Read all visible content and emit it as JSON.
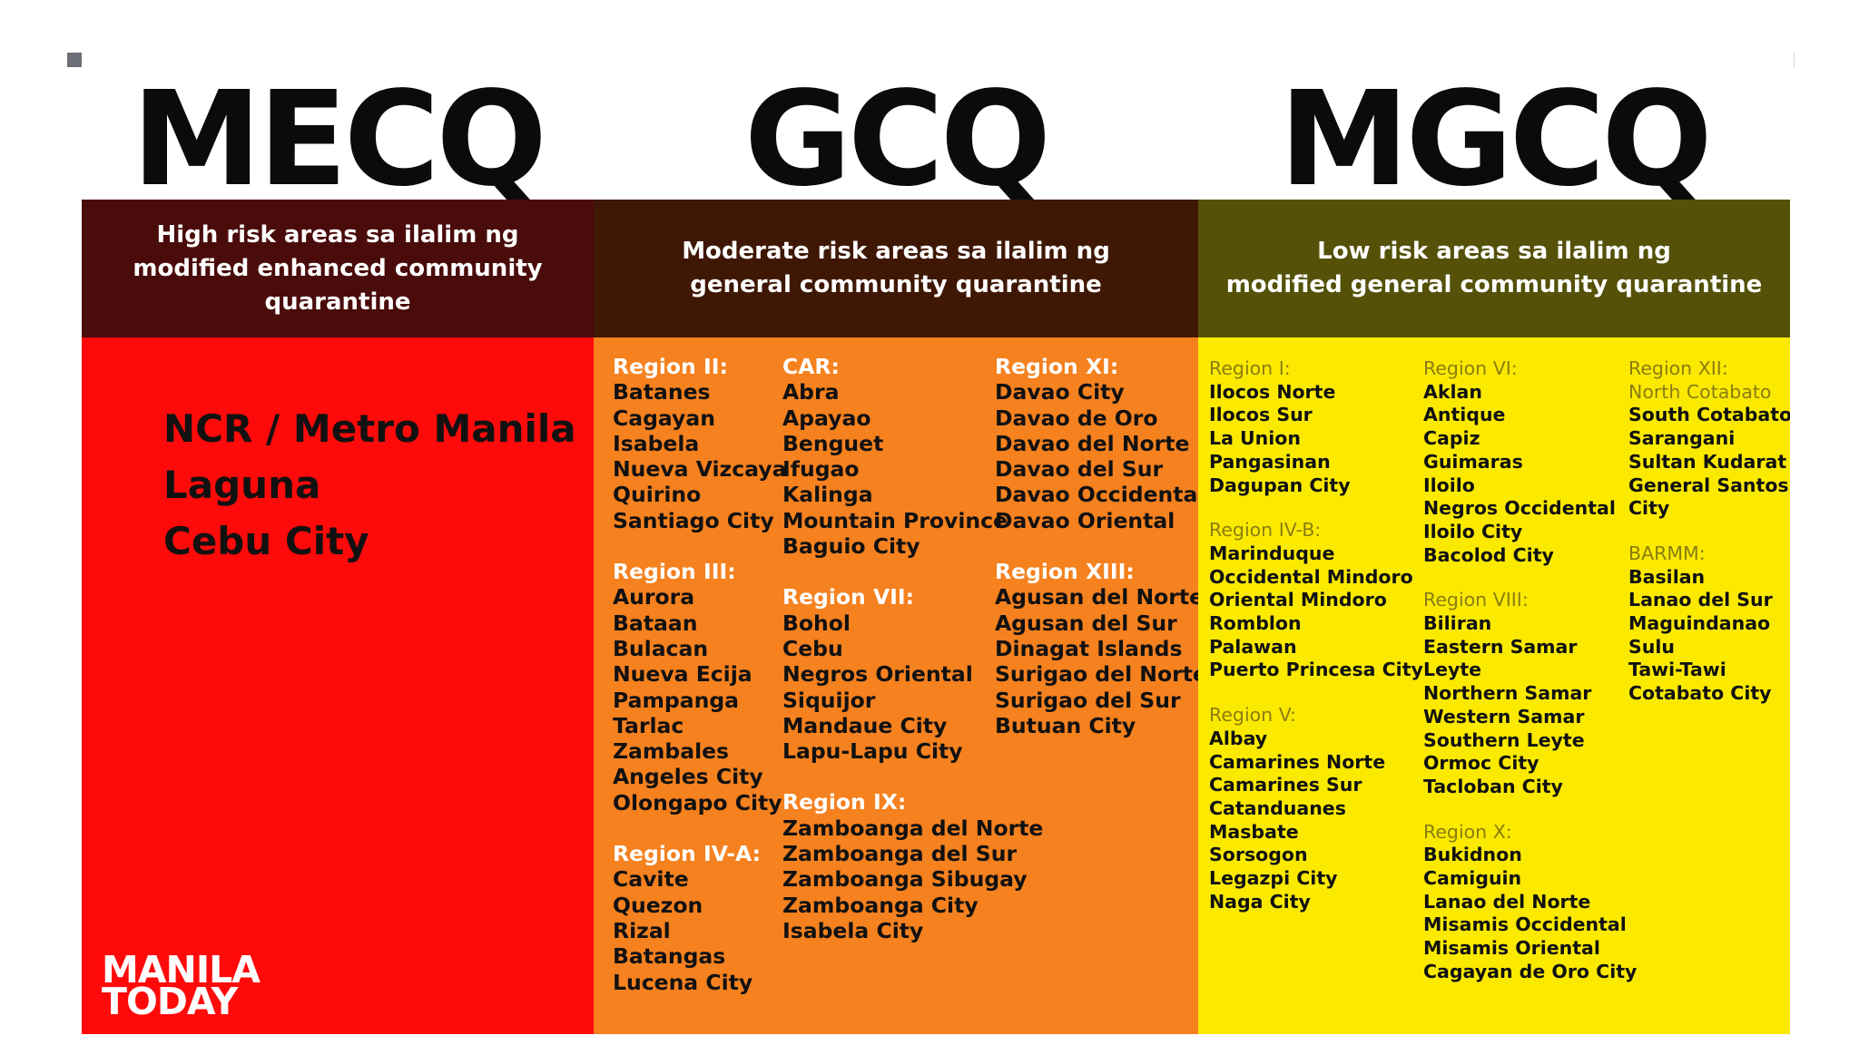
{
  "zones": {
    "mecq": {
      "title": "MECQ",
      "description": [
        "High risk areas sa ilalim ng",
        "modified enhanced community quarantine"
      ],
      "areas": [
        "NCR / Metro Manila",
        "Laguna",
        "Cebu City"
      ],
      "colors": {
        "band": "#4a0b0b",
        "body": "#ff0a0a"
      }
    },
    "gcq": {
      "title": "GCQ",
      "description": [
        "Moderate risk areas sa ilalim ng",
        "general community quarantine"
      ],
      "colors": {
        "band": "#3f1805",
        "body": "#f5811f"
      },
      "columns": [
        [
          {
            "region": "Region II:",
            "items": [
              "Batanes",
              "Cagayan",
              "Isabela",
              "Nueva Vizcaya",
              "Quirino",
              "Santiago City"
            ]
          },
          {
            "region": "Region III:",
            "items": [
              "Aurora",
              "Bataan",
              "Bulacan",
              "Nueva Ecija",
              "Pampanga",
              "Tarlac",
              "Zambales",
              "Angeles City",
              "Olongapo City"
            ]
          },
          {
            "region": "Region IV-A:",
            "items": [
              "Cavite",
              "Quezon",
              "Rizal",
              "Batangas",
              "Lucena City"
            ]
          }
        ],
        [
          {
            "region": "CAR:",
            "items": [
              "Abra",
              "Apayao",
              "Benguet",
              "Ifugao",
              "Kalinga",
              "Mountain Province",
              "Baguio City"
            ]
          },
          {
            "region": "Region VII:",
            "items": [
              "Bohol",
              "Cebu",
              "Negros Oriental",
              "Siquijor",
              "Mandaue City",
              "Lapu-Lapu City"
            ]
          },
          {
            "region": "Region IX:",
            "items": [
              "Zamboanga del Norte",
              "Zamboanga del Sur",
              "Zamboanga Sibugay",
              "Zamboanga City",
              "Isabela City"
            ]
          }
        ],
        [
          {
            "region": "Region XI:",
            "items": [
              "Davao City",
              "Davao de Oro",
              "Davao del Norte",
              "Davao del Sur",
              "Davao Occidental",
              "Davao Oriental"
            ]
          },
          {
            "region": "Region XIII:",
            "items": [
              "Agusan del Norte",
              "Agusan del Sur",
              "Dinagat Islands",
              "Surigao del Norte",
              "Surigao del Sur",
              "Butuan City"
            ]
          }
        ]
      ]
    },
    "mgcq": {
      "title": "MGCQ",
      "description": [
        "Low risk areas sa ilalim ng",
        "modified general community quarantine"
      ],
      "colors": {
        "band": "#555109",
        "body": "#fbea00"
      },
      "columns": [
        [
          {
            "region": "Region I:",
            "items": [
              "Ilocos Norte",
              "Ilocos Sur",
              "La Union",
              "Pangasinan",
              "Dagupan City"
            ]
          },
          {
            "region": "Region IV-B:",
            "items": [
              "Marinduque",
              "Occidental Mindoro",
              "Oriental Mindoro",
              "Romblon",
              "Palawan",
              "Puerto Princesa City"
            ]
          },
          {
            "region": "Region V:",
            "items": [
              "Albay",
              "Camarines Norte",
              "Camarines Sur",
              "Catanduanes",
              "Masbate",
              "Sorsogon",
              "Legazpi City",
              "Naga City"
            ]
          }
        ],
        [
          {
            "region": "Region VI:",
            "items": [
              "Aklan",
              "Antique",
              "Capiz",
              "Guimaras",
              "Iloilo",
              "Negros Occidental",
              "Iloilo City",
              "Bacolod City"
            ]
          },
          {
            "region": "Region VIII:",
            "items": [
              "Biliran",
              "Eastern Samar",
              "Leyte",
              "Northern Samar",
              "Western Samar",
              "Southern Leyte",
              "Ormoc City",
              "Tacloban City"
            ]
          },
          {
            "region": "Region X:",
            "items": [
              "Bukidnon",
              "Camiguin",
              "Lanao del Norte",
              "Misamis Occidental",
              "Misamis Oriental",
              "Cagayan de Oro City"
            ]
          }
        ],
        [
          {
            "region": "Region XII:",
            "dim_items": [
              "North Cotabato"
            ],
            "items": [
              "South Cotabato",
              "Sarangani",
              "Sultan Kudarat",
              "General Santos",
              "City"
            ]
          },
          {
            "region": "BARMM:",
            "items": [
              "Basilan",
              "Lanao del Sur",
              "Maguindanao",
              "Sulu",
              "Tawi-Tawi",
              "Cotabato City"
            ]
          }
        ]
      ]
    }
  },
  "logo": {
    "line1": "MANILA",
    "line2": "TODAY"
  }
}
